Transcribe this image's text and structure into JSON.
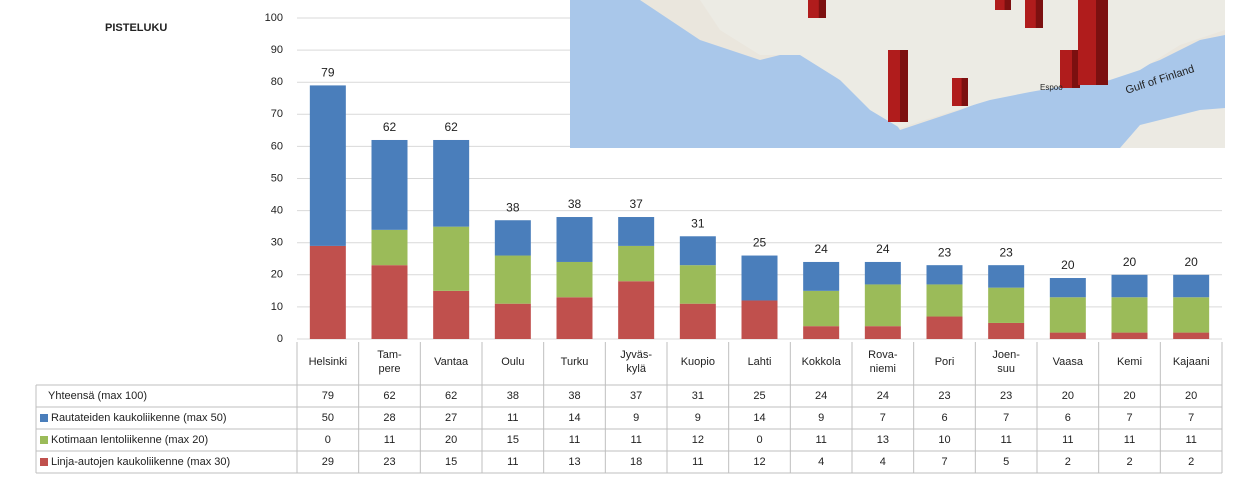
{
  "chart_data": {
    "type": "stacked-bar",
    "y_label": "PISTELUKU",
    "categories": [
      "Helsinki",
      "Tam-\npere",
      "Vantaa",
      "Oulu",
      "Turku",
      "Jyväs-\nkylä",
      "Kuopio",
      "Lahti",
      "Kokkola",
      "Rova-\nniemi",
      "Pori",
      "Joen-\nsuu",
      "Vaasa",
      "Kemi",
      "Kajaani"
    ],
    "totals": {
      "name": "Yhteensä (max 100)",
      "values": [
        79,
        62,
        62,
        38,
        38,
        37,
        31,
        25,
        24,
        24,
        23,
        23,
        20,
        20,
        20
      ]
    },
    "series": [
      {
        "name": "Rautateiden kaukoliikenne (max 50)",
        "color": "#4a7ebb",
        "values": [
          50,
          28,
          27,
          11,
          14,
          9,
          9,
          14,
          9,
          7,
          6,
          7,
          6,
          7,
          7
        ]
      },
      {
        "name": "Kotimaan lentoliikenne (max 20)",
        "color": "#9bbb59",
        "values": [
          0,
          11,
          20,
          15,
          11,
          11,
          12,
          0,
          11,
          13,
          10,
          11,
          11,
          11,
          11
        ]
      },
      {
        "name": "Linja-autojen kaukoliikenne (max 30)",
        "color": "#c0504d",
        "values": [
          29,
          23,
          15,
          11,
          13,
          18,
          11,
          12,
          4,
          4,
          7,
          5,
          2,
          2,
          2
        ]
      }
    ],
    "ylim": [
      0,
      100
    ],
    "yticks": [
      0,
      10,
      20,
      30,
      40,
      50,
      60,
      70,
      80,
      90,
      100
    ],
    "grid": true
  },
  "map": {
    "labels": [
      "Gulf of Finland",
      "Espoo"
    ]
  }
}
